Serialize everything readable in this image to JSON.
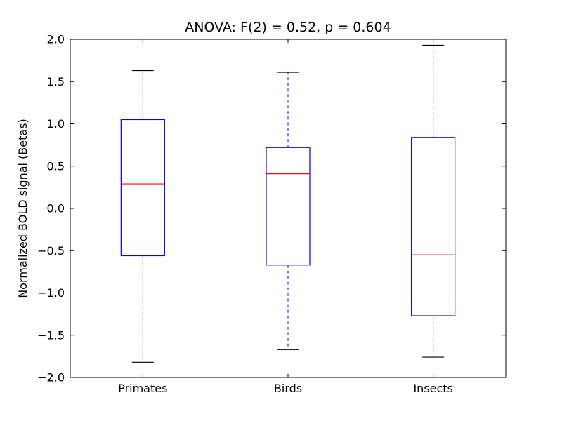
{
  "chart_data": {
    "type": "box",
    "title": "ANOVA: F(2) = 0.52, p = 0.604",
    "xlabel": "",
    "ylabel": "Normalized BOLD signal (Betas)",
    "categories": [
      "Primates",
      "Birds",
      "Insects"
    ],
    "positions": [
      1,
      2,
      3
    ],
    "xlim": [
      0.5,
      3.5
    ],
    "ylim": [
      -2.0,
      2.0
    ],
    "yticks": [
      2.0,
      1.5,
      1.0,
      0.5,
      0.0,
      -0.5,
      -1.0,
      -1.5,
      -2.0
    ],
    "ytick_labels": [
      "2.0",
      "1.5",
      "1.0",
      "0.5",
      "0.0",
      "−0.5",
      "−1.0",
      "−1.5",
      "−2.0"
    ],
    "grid": false,
    "legend": null,
    "series": [
      {
        "name": "Primates",
        "whisker_low": -1.82,
        "q1": -0.56,
        "median": 0.29,
        "q3": 1.05,
        "whisker_high": 1.63,
        "outliers": []
      },
      {
        "name": "Birds",
        "whisker_low": -1.67,
        "q1": -0.67,
        "median": 0.41,
        "q3": 0.72,
        "whisker_high": 1.61,
        "outliers": []
      },
      {
        "name": "Insects",
        "whisker_low": -1.76,
        "q1": -1.27,
        "median": -0.55,
        "q3": 0.84,
        "whisker_high": 1.93,
        "outliers": []
      }
    ],
    "colors": {
      "box": "#0000ff",
      "median": "#ff0000",
      "whisker": "#0000ff",
      "cap": "#000000",
      "axis": "#000000",
      "text": "#000000",
      "background": "#ffffff"
    },
    "style": {
      "whisker_dashed": true,
      "box_width_units": 0.3,
      "cap_width_units": 0.15,
      "tick_direction": "in"
    }
  }
}
